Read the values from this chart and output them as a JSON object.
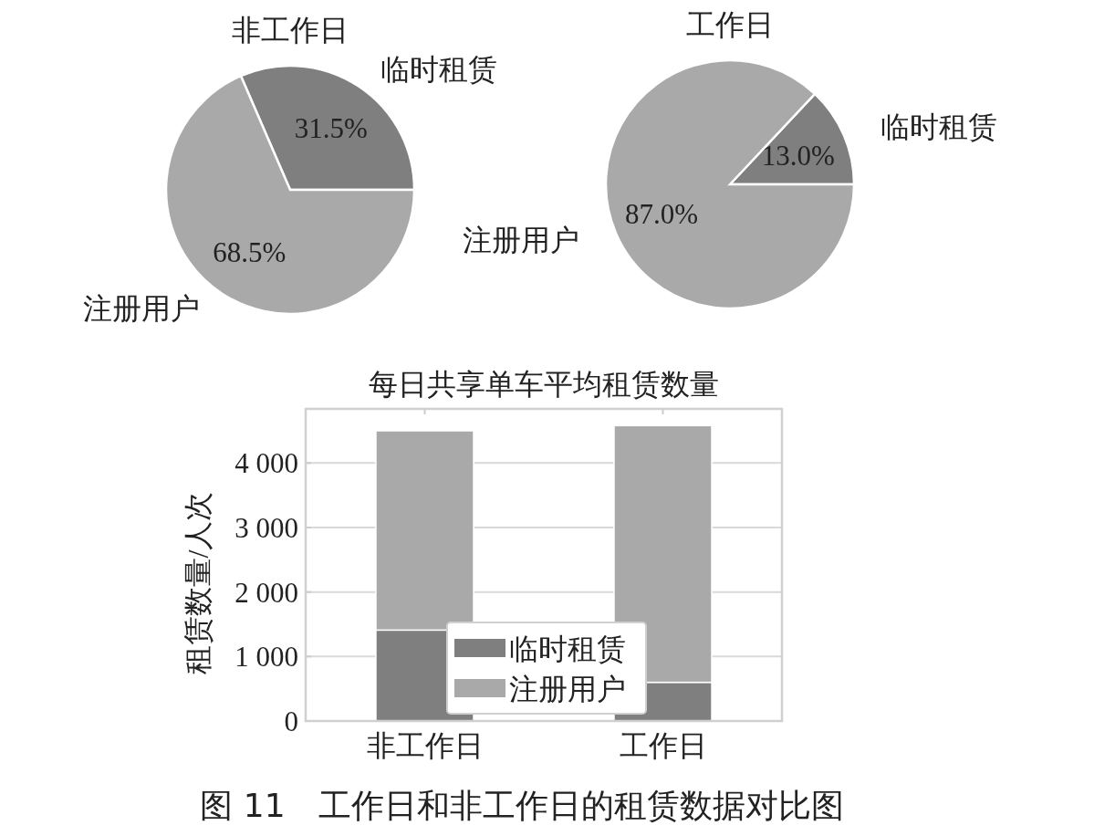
{
  "chart_data": [
    {
      "type": "pie",
      "title": "非工作日",
      "categories": [
        "临时租赁",
        "注册用户"
      ],
      "values": [
        31.5,
        68.5
      ],
      "colors": [
        "#7f7f7f",
        "#a9a9a9"
      ],
      "value_labels": [
        "31.5%",
        "68.5%"
      ]
    },
    {
      "type": "pie",
      "title": "工作日",
      "categories": [
        "临时租赁",
        "注册用户"
      ],
      "values": [
        13.0,
        87.0
      ],
      "colors": [
        "#7f7f7f",
        "#a9a9a9"
      ],
      "value_labels": [
        "13.0%",
        "87.0%"
      ]
    },
    {
      "type": "bar",
      "title": "每日共享单车平均租赁数量",
      "ylabel": "租赁数量/人次",
      "categories": [
        "非工作日",
        "工作日"
      ],
      "stacked": true,
      "ylim": [
        0,
        4840
      ],
      "yticks": [
        {
          "value": 0,
          "label": "0"
        },
        {
          "value": 1000,
          "label": "1 000"
        },
        {
          "value": 2000,
          "label": "2 000"
        },
        {
          "value": 3000,
          "label": "3 000"
        },
        {
          "value": 4000,
          "label": "4 000"
        }
      ],
      "grid": "y",
      "legend": "bottom",
      "series": [
        {
          "name": "临时租赁",
          "color": "#7f7f7f",
          "values": [
            1410,
            600
          ]
        },
        {
          "name": "注册用户",
          "color": "#a9a9a9",
          "values": [
            3090,
            3980
          ]
        }
      ],
      "annotations": [
        "图 11　工作日和非工作日的租赁数据对比图"
      ]
    }
  ]
}
